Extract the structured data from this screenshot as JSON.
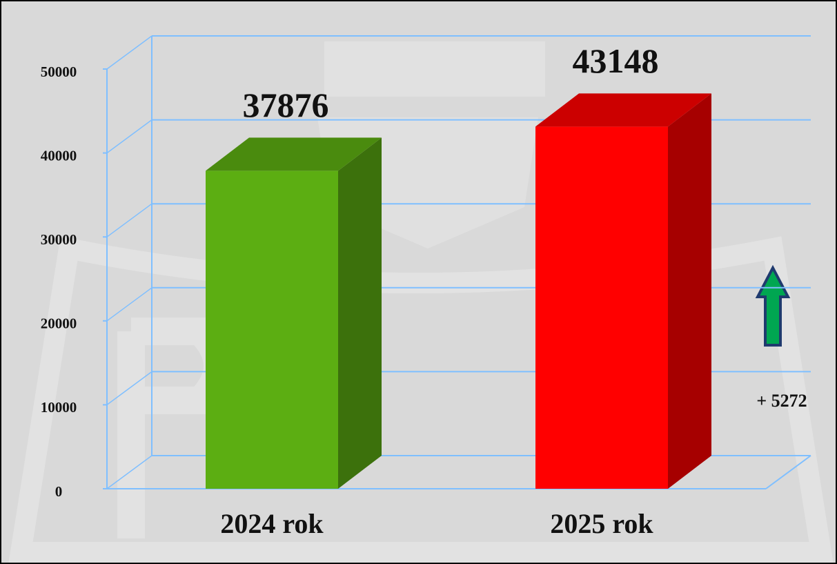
{
  "chart_data": {
    "type": "bar3d",
    "categories": [
      "2024 rok",
      "2025 rok"
    ],
    "values": [
      37876,
      43148
    ],
    "colors": [
      "#5cae12",
      "#ff0000"
    ],
    "ylim": [
      0,
      50000
    ],
    "yticks": [
      0,
      10000,
      20000,
      30000,
      40000,
      50000
    ],
    "grid": true,
    "annotation": "+ 5272"
  }
}
